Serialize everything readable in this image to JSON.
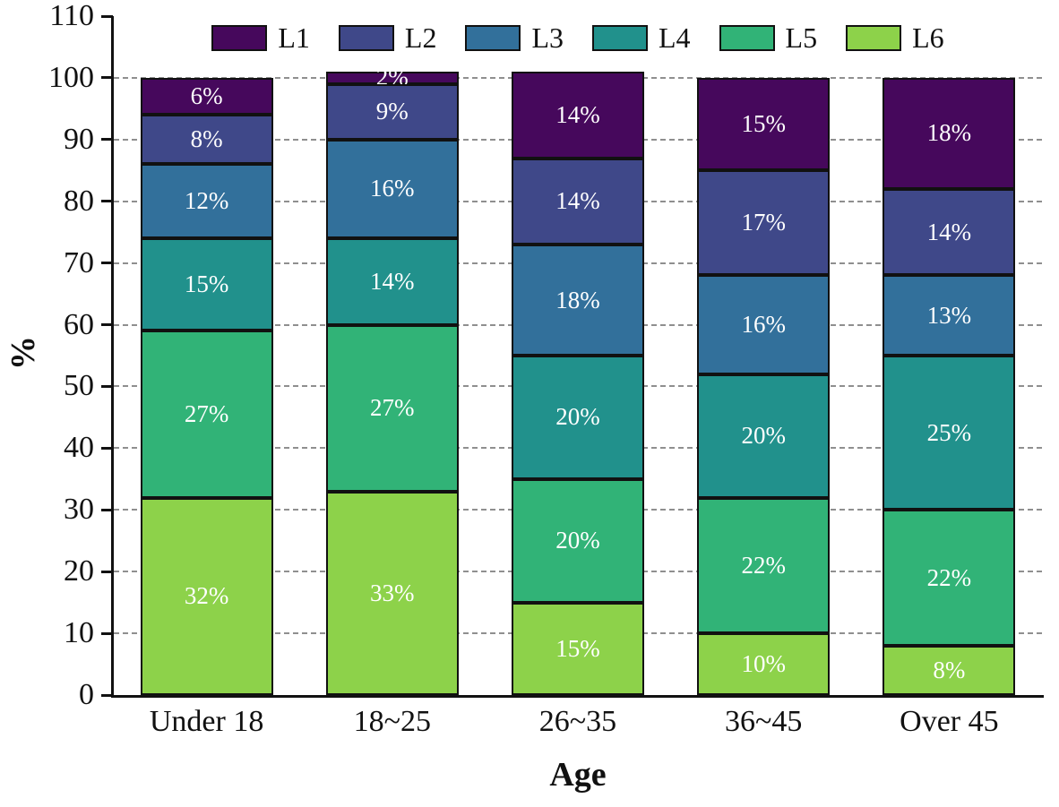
{
  "chart_data": {
    "type": "bar",
    "stacked": true,
    "xlabel": "Age",
    "ylabel": "%",
    "categories": [
      "Under 18",
      "18~25",
      "26~35",
      "36~45",
      "Over 45"
    ],
    "series": [
      {
        "name": "L1",
        "color": "#46085C",
        "values": [
          6,
          2,
          14,
          15,
          18
        ]
      },
      {
        "name": "L2",
        "color": "#3F4889",
        "values": [
          8,
          9,
          14,
          17,
          14
        ]
      },
      {
        "name": "L3",
        "color": "#32709B",
        "values": [
          12,
          16,
          18,
          16,
          13
        ]
      },
      {
        "name": "L4",
        "color": "#21918C",
        "values": [
          15,
          14,
          20,
          20,
          25
        ]
      },
      {
        "name": "L5",
        "color": "#31B377",
        "values": [
          27,
          27,
          20,
          22,
          22
        ]
      },
      {
        "name": "L6",
        "color": "#8DD24A",
        "values": [
          32,
          33,
          15,
          10,
          8
        ]
      }
    ],
    "ylim": [
      0,
      110
    ],
    "yticks": [
      0,
      10,
      20,
      30,
      40,
      50,
      60,
      70,
      80,
      90,
      100,
      110
    ],
    "gridlines": [
      10,
      20,
      30,
      40,
      50,
      60,
      70,
      80,
      90,
      100
    ],
    "grid_style": "dashed",
    "data_label_suffix": "%",
    "legend_position": "top-inside",
    "stack_order": "last-series-at-bottom",
    "colors": {
      "axis": "#111111",
      "grid": "#8f8f8f",
      "bar_border": "#111111",
      "data_label_text": "#ffffff",
      "background": "#ffffff"
    }
  }
}
